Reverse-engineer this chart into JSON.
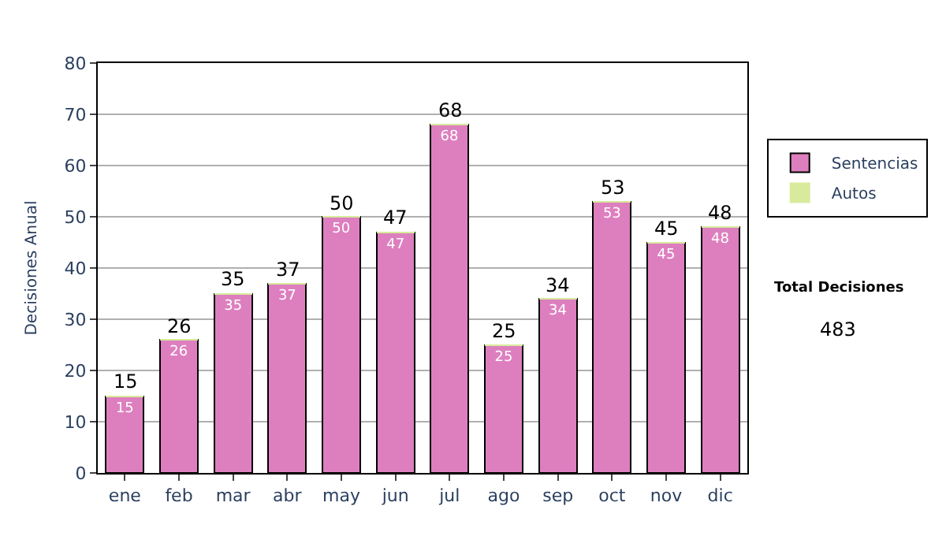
{
  "chart_data": {
    "type": "bar",
    "stacked": true,
    "ylabel": "Decisiones Anual",
    "categories": [
      "ene",
      "feb",
      "mar",
      "abr",
      "may",
      "jun",
      "jul",
      "ago",
      "sep",
      "oct",
      "nov",
      "dic"
    ],
    "series": [
      {
        "name": "Sentencias",
        "color": "#dd7fbf",
        "values": [
          15,
          26,
          35,
          37,
          50,
          47,
          68,
          25,
          34,
          53,
          45,
          48
        ],
        "value_labels": [
          "15",
          "26",
          "35",
          "37",
          "50",
          "47",
          "68",
          "25",
          "34",
          "53",
          "45",
          "48"
        ]
      },
      {
        "name": "Autos",
        "color": "#d8eb9c",
        "values": [
          0,
          0,
          0,
          0,
          0,
          0,
          0,
          0,
          0,
          0,
          0,
          0
        ]
      }
    ],
    "totals": [
      "15",
      "26",
      "35",
      "37",
      "50",
      "47",
      "68",
      "25",
      "34",
      "53",
      "45",
      "48"
    ],
    "ylim": [
      0,
      80
    ],
    "yticks": [
      0,
      10,
      20,
      30,
      40,
      50,
      60,
      70,
      80
    ],
    "grid": "y",
    "legend": "right",
    "annotations": [
      "Total Decisiones",
      "483"
    ]
  }
}
